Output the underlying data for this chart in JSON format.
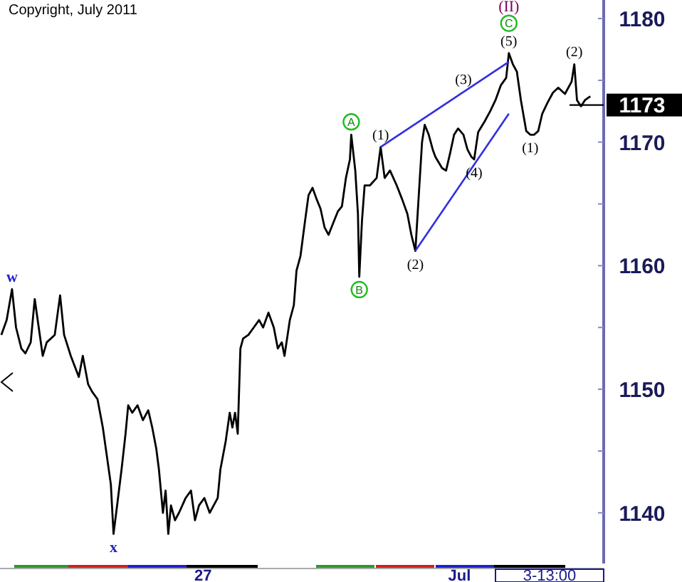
{
  "chart_data": {
    "type": "line",
    "xlim": [
      "2011-06-23T20:00",
      "2011-07-03T06:00"
    ],
    "ylim": [
      1135.9,
      1181.5
    ],
    "xticks": [
      {
        "value": "2011-06-27",
        "label": "27"
      },
      {
        "value": "2011-07-01",
        "label": "Jul"
      }
    ],
    "yticks": [
      1140,
      {
        "value": 1145,
        "label": null
      },
      1150,
      {
        "value": 1155,
        "label": null
      },
      1160,
      {
        "value": 1165,
        "label": null
      },
      1170,
      {
        "value": 1175,
        "label": null
      },
      1180
    ],
    "grid": false,
    "marker": "none",
    "line_style": "solid",
    "series": [
      {
        "color": "#000000",
        "x": [
          "2011-06-23T20:30",
          "2011-06-23T22:30",
          "2011-06-24T00:30",
          "2011-06-24T02:00",
          "2011-06-24T04:00",
          "2011-06-24T05:30",
          "2011-06-24T07:30",
          "2011-06-24T09:00",
          "2011-06-24T10:30",
          "2011-06-24T12:00",
          "2011-06-24T13:30",
          "2011-06-24T16:30",
          "2011-06-24T18:30",
          "2011-06-24T20:00",
          "2011-06-24T22:30",
          "2011-06-25T01:30",
          "2011-06-25T03:00",
          "2011-06-25T05:00",
          "2011-06-25T06:30",
          "2011-06-25T08:30",
          "2011-06-25T10:30",
          "2011-06-25T12:00",
          "2011-06-25T13:30",
          "2011-06-25T14:30",
          "2011-06-25T15:30",
          "2011-06-25T17:30",
          "2011-06-25T19:00",
          "2011-06-25T20:00",
          "2011-06-25T21:30",
          "2011-06-25T23:30",
          "2011-06-26T01:30",
          "2011-06-26T03:30",
          "2011-06-26T05:00",
          "2011-06-26T06:30",
          "2011-06-26T07:30",
          "2011-06-26T09:00",
          "2011-06-26T10:00",
          "2011-06-26T11:00",
          "2011-06-26T12:00",
          "2011-06-26T13:30",
          "2011-06-26T15:00",
          "2011-06-26T17:30",
          "2011-06-26T19:30",
          "2011-06-26T21:00",
          "2011-06-26T22:30",
          "2011-06-27T00:30",
          "2011-06-27T02:30",
          "2011-06-27T04:00",
          "2011-06-27T05:30",
          "2011-06-27T06:30",
          "2011-06-27T08:30",
          "2011-06-27T10:00",
          "2011-06-27T11:00",
          "2011-06-27T12:00",
          "2011-06-27T13:00",
          "2011-06-27T14:00",
          "2011-06-27T15:00",
          "2011-06-27T17:00",
          "2011-06-27T19:00",
          "2011-06-27T21:00",
          "2011-06-27T22:30",
          "2011-06-28T00:30",
          "2011-06-28T02:30",
          "2011-06-28T04:00",
          "2011-06-28T05:30",
          "2011-06-28T06:30",
          "2011-06-28T08:30",
          "2011-06-28T10:00",
          "2011-06-28T11:00",
          "2011-06-28T12:30",
          "2011-06-28T14:00",
          "2011-06-28T15:30",
          "2011-06-28T17:00",
          "2011-06-28T18:30",
          "2011-06-28T20:00",
          "2011-06-28T21:30",
          "2011-06-28T23:00",
          "2011-06-29T01:00",
          "2011-06-29T02:30",
          "2011-06-29T04:00",
          "2011-06-29T05:30",
          "2011-06-29T07:00",
          "2011-06-29T07:30",
          "2011-06-29T09:00",
          "2011-06-29T10:00",
          "2011-06-29T10:30",
          "2011-06-29T11:30",
          "2011-06-29T12:30",
          "2011-06-29T14:30",
          "2011-06-29T17:00",
          "2011-06-29T18:30",
          "2011-06-29T20:00",
          "2011-06-29T22:00",
          "2011-06-30T00:30",
          "2011-06-30T02:30",
          "2011-06-30T04:30",
          "2011-06-30T06:00",
          "2011-06-30T07:30",
          "2011-06-30T09:00",
          "2011-06-30T10:00",
          "2011-06-30T11:00",
          "2011-06-30T12:30",
          "2011-06-30T14:00",
          "2011-06-30T15:00",
          "2011-06-30T17:30",
          "2011-06-30T19:00",
          "2011-06-30T20:30",
          "2011-06-30T22:00",
          "2011-06-30T23:30",
          "2011-07-01T01:30",
          "2011-07-01T03:00",
          "2011-07-01T04:30",
          "2011-07-01T05:30",
          "2011-07-01T07:00",
          "2011-07-01T09:30",
          "2011-07-01T11:30",
          "2011-07-01T13:30",
          "2011-07-01T15:30",
          "2011-07-01T17:30",
          "2011-07-01T18:30",
          "2011-07-01T20:00",
          "2011-07-01T21:30",
          "2011-07-01T23:00",
          "2011-07-02T01:00",
          "2011-07-02T02:30",
          "2011-07-02T04:00",
          "2011-07-02T05:30",
          "2011-07-02T07:00",
          "2011-07-02T09:00",
          "2011-07-02T11:00",
          "2011-07-02T13:00",
          "2011-07-02T15:30",
          "2011-07-02T18:00",
          "2011-07-02T19:00",
          "2011-07-02T20:00",
          "2011-07-02T21:30",
          "2011-07-02T23:00",
          "2011-07-03T01:00"
        ],
        "values": [
          1154.4,
          1155.6,
          1158.1,
          1155.0,
          1153.3,
          1152.9,
          1153.8,
          1157.3,
          1155.0,
          1152.7,
          1153.8,
          1154.4,
          1157.6,
          1154.4,
          1152.7,
          1151.0,
          1152.7,
          1150.4,
          1149.8,
          1149.2,
          1146.9,
          1144.6,
          1142.3,
          1138.3,
          1140.0,
          1143.5,
          1146.4,
          1148.7,
          1148.1,
          1148.7,
          1147.5,
          1148.3,
          1146.9,
          1145.2,
          1143.5,
          1140.0,
          1141.8,
          1138.3,
          1140.6,
          1139.4,
          1140.0,
          1141.2,
          1141.8,
          1139.4,
          1140.6,
          1141.2,
          1140.0,
          1140.6,
          1141.2,
          1143.5,
          1145.8,
          1148.1,
          1146.9,
          1148.1,
          1146.4,
          1153.3,
          1154.1,
          1154.4,
          1155.0,
          1155.6,
          1155.0,
          1156.2,
          1155.0,
          1153.3,
          1153.8,
          1152.7,
          1155.6,
          1156.8,
          1159.6,
          1160.8,
          1163.3,
          1165.7,
          1166.3,
          1165.4,
          1164.6,
          1163.1,
          1162.5,
          1163.6,
          1164.4,
          1164.8,
          1167.1,
          1168.6,
          1170.6,
          1167.7,
          1164.2,
          1159.1,
          1163.6,
          1166.5,
          1166.5,
          1167.1,
          1169.6,
          1167.1,
          1167.7,
          1166.5,
          1165.4,
          1164.2,
          1162.5,
          1161.2,
          1166.5,
          1170.0,
          1171.4,
          1170.6,
          1169.4,
          1168.8,
          1167.9,
          1167.7,
          1169.1,
          1170.6,
          1171.1,
          1170.6,
          1169.4,
          1168.8,
          1168.6,
          1170.8,
          1171.7,
          1172.5,
          1173.4,
          1174.6,
          1175.2,
          1177.2,
          1176.3,
          1175.7,
          1173.4,
          1170.9,
          1170.6,
          1170.6,
          1170.9,
          1172.3,
          1173.2,
          1174.0,
          1174.4,
          1173.9,
          1174.9,
          1176.3,
          1173.4,
          1172.9,
          1173.4,
          1173.7
        ]
      },
      {
        "type": "line",
        "color": "#3030e0",
        "x": [
          "2011-06-29T18:30",
          "2011-07-01T18:30"
        ],
        "values": [
          1169.6,
          1176.5
        ]
      },
      {
        "type": "line",
        "color": "#3030e0",
        "x": [
          "2011-06-30T07:30",
          "2011-07-01T18:30"
        ],
        "values": [
          1161.2,
          1172.3
        ]
      }
    ],
    "ref_lines": [
      {
        "axis": "y",
        "value": 1173,
        "label": "1173"
      }
    ],
    "annotations": [
      {
        "text": "w",
        "x": "2011-06-24T00:30",
        "y": 1158.1
      },
      {
        "text": "x",
        "x": "2011-06-25T14:30",
        "y": 1138.3
      },
      {
        "text": "A",
        "x": "2011-06-29T07:30",
        "y": 1170.6
      },
      {
        "text": "B",
        "x": "2011-06-29T10:30",
        "y": 1159.1
      },
      {
        "text": "(1)",
        "x": "2011-06-29T18:30",
        "y": 1169.6
      },
      {
        "text": "(2)",
        "x": "2011-06-30T07:30",
        "y": 1161.2
      },
      {
        "text": "(3)",
        "x": "2011-07-01T01:30",
        "y": 1174.1
      },
      {
        "text": "(4)",
        "x": "2011-07-01T05:30",
        "y": 1168.6
      },
      {
        "text": "(5)",
        "x": "2011-07-01T18:30",
        "y": 1177.2
      },
      {
        "text": "C",
        "x": "2011-07-01T18:30",
        "y": 1177.2
      },
      {
        "text": "(II)",
        "x": "2011-07-01T18:30",
        "y": 1177.2
      },
      {
        "text": "(1)",
        "x": "2011-07-02T02:30",
        "y": 1170.6
      },
      {
        "text": "(2)",
        "x": "2011-07-02T19:00",
        "y": 1176.3
      },
      "Copyright, July 2011",
      "3-13:00"
    ]
  }
}
